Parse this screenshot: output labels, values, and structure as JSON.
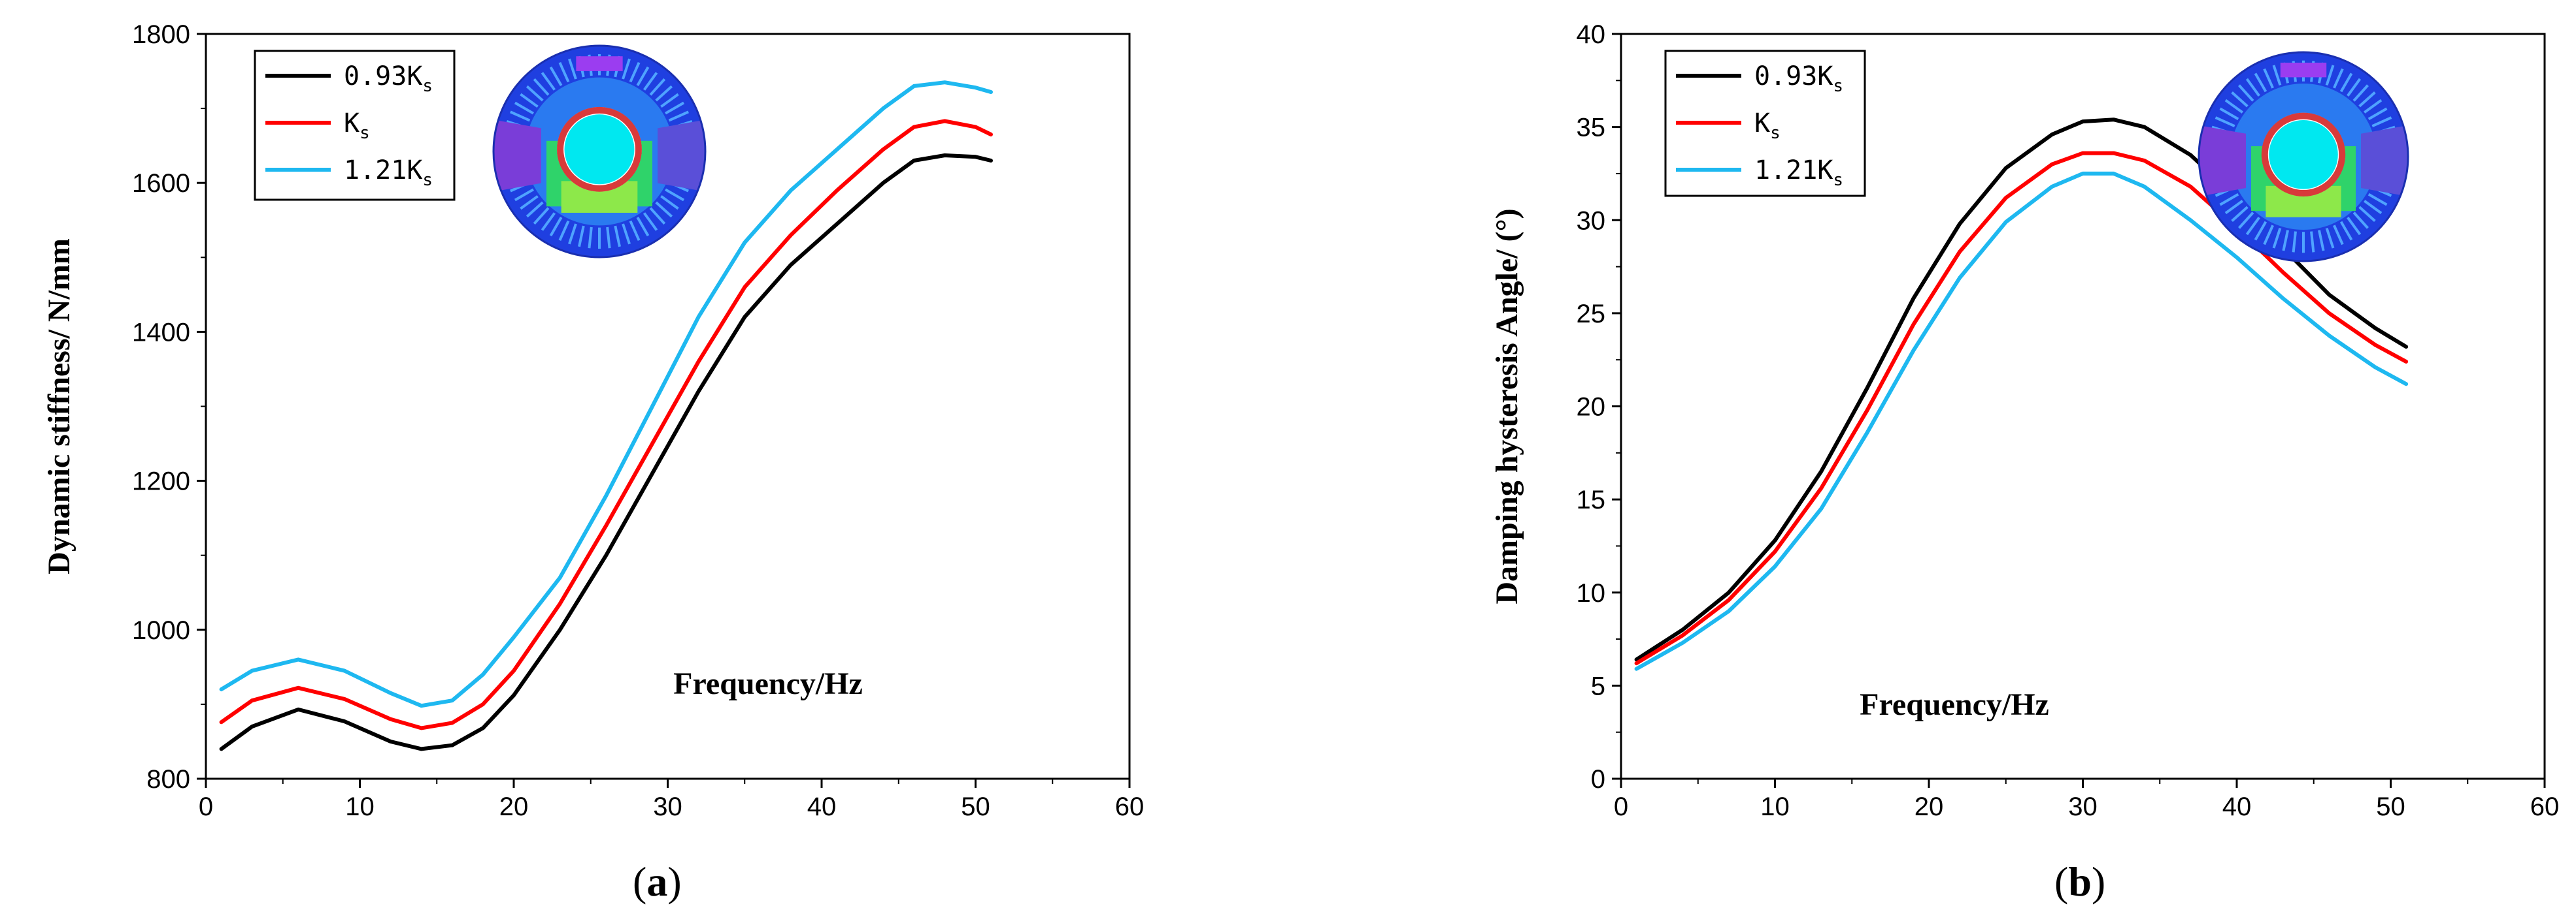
{
  "chart_data": [
    {
      "type": "line",
      "panel_label": "(a)",
      "panel_letter": "a",
      "ylabel": "Dynamic stiffness/ N/mm",
      "xlabel": "Frequency/Hz",
      "xlim": [
        0,
        60
      ],
      "ylim": [
        800,
        1800
      ],
      "xticks": [
        0,
        10,
        20,
        30,
        40,
        50,
        60
      ],
      "yticks": [
        800,
        1000,
        1200,
        1400,
        1600,
        1800
      ],
      "legend_position": "top-left",
      "inset": "fem-contour-plot",
      "series": [
        {
          "name": "0.93Ks",
          "label_main": "0.93K",
          "label_sub": "s",
          "color": "#000000",
          "x": [
            1,
            3,
            6,
            9,
            12,
            14,
            16,
            18,
            20,
            23,
            26,
            29,
            32,
            35,
            38,
            41,
            44,
            46,
            48,
            50,
            51
          ],
          "values": [
            840,
            870,
            893,
            877,
            850,
            840,
            845,
            868,
            912,
            1000,
            1100,
            1210,
            1320,
            1420,
            1490,
            1545,
            1600,
            1630,
            1637,
            1635,
            1630
          ]
        },
        {
          "name": "Ks",
          "label_main": "K",
          "label_sub": "s",
          "color": "#ff0000",
          "x": [
            1,
            3,
            6,
            9,
            12,
            14,
            16,
            18,
            20,
            23,
            26,
            29,
            32,
            35,
            38,
            41,
            44,
            46,
            48,
            50,
            51
          ],
          "values": [
            876,
            905,
            922,
            907,
            880,
            868,
            875,
            900,
            945,
            1035,
            1140,
            1250,
            1360,
            1460,
            1530,
            1590,
            1645,
            1675,
            1683,
            1675,
            1665
          ]
        },
        {
          "name": "1.21Ks",
          "label_main": "1.21K",
          "label_sub": "s",
          "color": "#1eb8f0",
          "x": [
            1,
            3,
            6,
            9,
            12,
            14,
            16,
            18,
            20,
            23,
            26,
            29,
            32,
            35,
            38,
            41,
            44,
            46,
            48,
            50,
            51
          ],
          "values": [
            920,
            945,
            960,
            945,
            915,
            898,
            905,
            940,
            990,
            1070,
            1180,
            1300,
            1420,
            1520,
            1590,
            1645,
            1700,
            1730,
            1735,
            1728,
            1722
          ]
        }
      ]
    },
    {
      "type": "line",
      "panel_label": "(b)",
      "panel_letter": "b",
      "ylabel": "Damping hysteresis Angle/ (°)",
      "xlabel": "Frequency/Hz",
      "xlim": [
        0,
        60
      ],
      "ylim": [
        0,
        40
      ],
      "xticks": [
        0,
        10,
        20,
        30,
        40,
        50,
        60
      ],
      "yticks": [
        0,
        5,
        10,
        15,
        20,
        25,
        30,
        35,
        40
      ],
      "legend_position": "top-left",
      "inset": "fem-contour-plot",
      "series": [
        {
          "name": "0.93Ks",
          "label_main": "0.93K",
          "label_sub": "s",
          "color": "#000000",
          "x": [
            1,
            4,
            7,
            10,
            13,
            16,
            19,
            22,
            25,
            28,
            30,
            32,
            34,
            37,
            40,
            43,
            46,
            49,
            51
          ],
          "values": [
            6.4,
            8.0,
            10.0,
            12.8,
            16.5,
            21.0,
            25.8,
            29.8,
            32.8,
            34.6,
            35.3,
            35.4,
            35.0,
            33.5,
            31.2,
            28.5,
            26.0,
            24.2,
            23.2
          ]
        },
        {
          "name": "Ks",
          "label_main": "K",
          "label_sub": "s",
          "color": "#ff0000",
          "x": [
            1,
            4,
            7,
            10,
            13,
            16,
            19,
            22,
            25,
            28,
            30,
            32,
            34,
            37,
            40,
            43,
            46,
            49,
            51
          ],
          "values": [
            6.2,
            7.7,
            9.6,
            12.2,
            15.6,
            19.8,
            24.4,
            28.3,
            31.2,
            33.0,
            33.6,
            33.6,
            33.2,
            31.8,
            29.6,
            27.2,
            25.0,
            23.3,
            22.4
          ]
        },
        {
          "name": "1.21Ks",
          "label_main": "1.21K",
          "label_sub": "s",
          "color": "#1eb8f0",
          "x": [
            1,
            4,
            7,
            10,
            13,
            16,
            19,
            22,
            25,
            28,
            30,
            32,
            34,
            37,
            40,
            43,
            46,
            49,
            51
          ],
          "values": [
            5.9,
            7.3,
            9.0,
            11.4,
            14.5,
            18.6,
            23.0,
            26.9,
            29.9,
            31.8,
            32.5,
            32.5,
            31.8,
            30.0,
            28.0,
            25.8,
            23.8,
            22.1,
            21.2
          ]
        }
      ]
    }
  ]
}
